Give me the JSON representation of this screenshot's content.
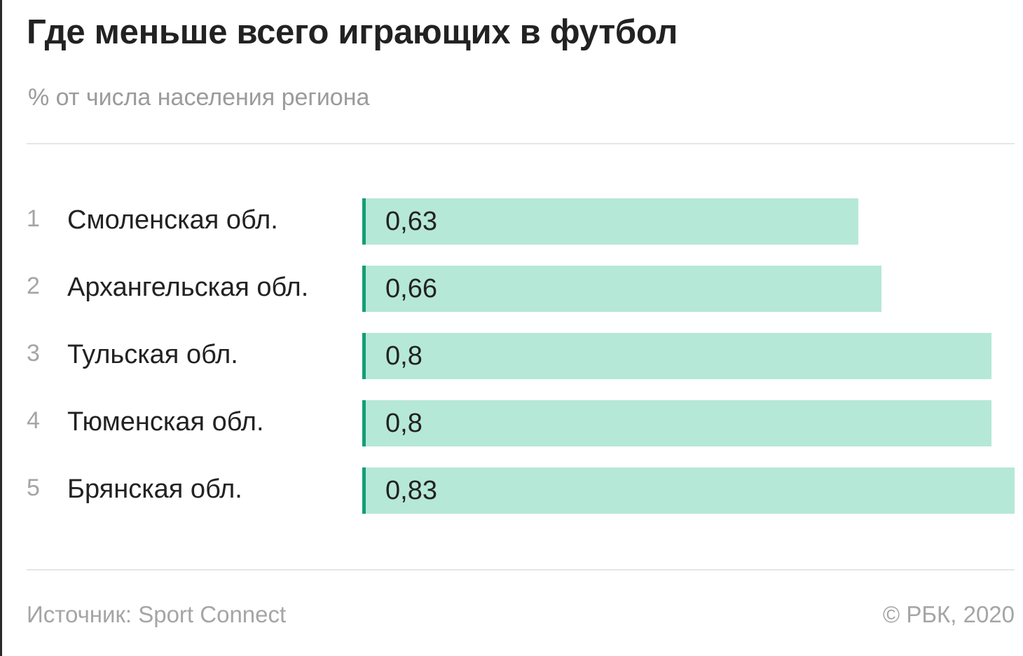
{
  "title": "Где меньше всего играющих в футбол",
  "subtitle": "% от числа населения региона",
  "colors": {
    "bar_fill": "#b6e8d7",
    "bar_accent": "#159e76",
    "text": "#222222",
    "muted": "#a5a5a5"
  },
  "chart_data": {
    "type": "bar",
    "orientation": "horizontal",
    "title": "Где меньше всего играющих в футбол",
    "subtitle": "% от числа населения региона",
    "ranks": [
      "1",
      "2",
      "3",
      "4",
      "5"
    ],
    "categories": [
      "Смоленская обл.",
      "Архангельская обл.",
      "Тульская обл.",
      "Тюменская обл.",
      "Брянская обл."
    ],
    "values": [
      0.63,
      0.66,
      0.8,
      0.8,
      0.83
    ],
    "value_labels": [
      "0,63",
      "0,66",
      "0,8",
      "0,8",
      "0,83"
    ],
    "xlim": [
      0,
      0.83
    ],
    "grid": false,
    "legend": "none"
  },
  "footer": {
    "source": "Источник: Sport Connect",
    "copyright": "© РБК, 2020"
  }
}
